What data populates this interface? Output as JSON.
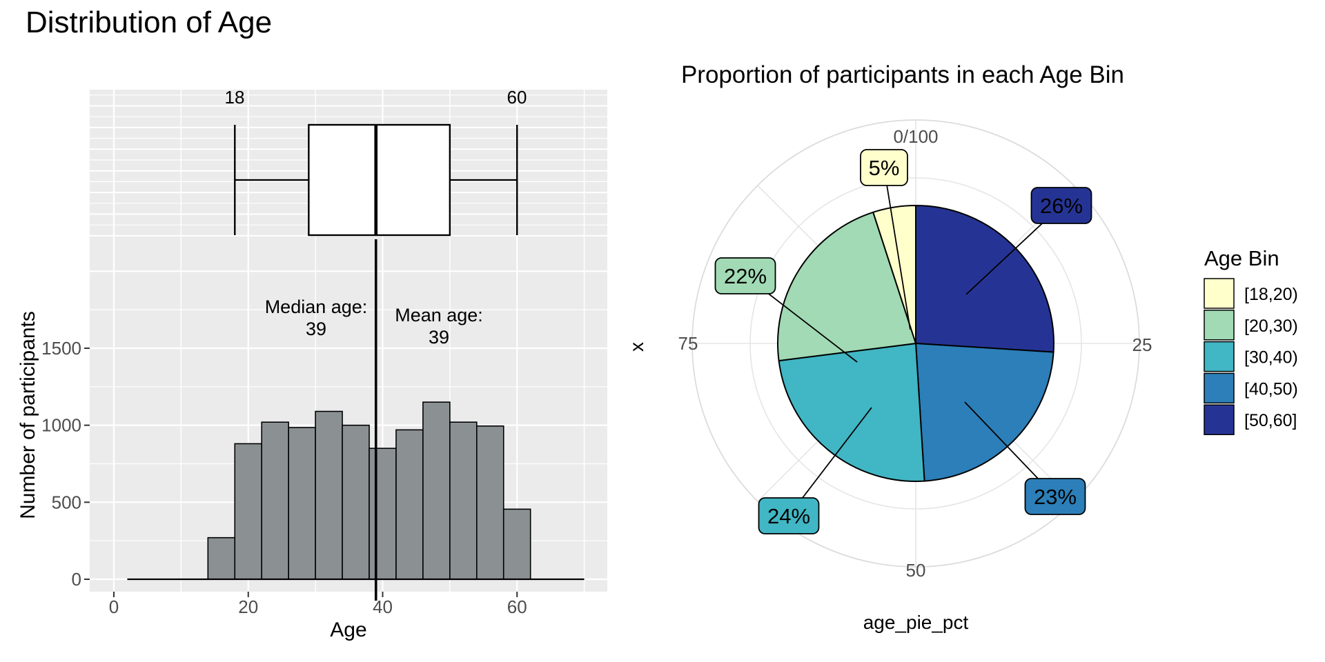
{
  "title": "Distribution of Age",
  "theme": {
    "panel_bg": "#EBEBEB",
    "grid": "#FFFFFF",
    "tick_text": "#4D4D4D",
    "polar_grid": "#E5E5E5",
    "outer_circle": "#DCDCDC",
    "boxplot_annotation_color": "#7D4E4E",
    "bar_fill": "#8B9193",
    "bar_stroke": "#000000"
  },
  "chart_data": [
    {
      "id": "age-boxplot",
      "type": "boxplot",
      "orientation": "horizontal",
      "stats": {
        "whisker_min": 18,
        "q1": 29,
        "median": 39,
        "q3": 50,
        "whisker_max": 60
      },
      "annotations": [
        {
          "text": "18",
          "x": 18
        },
        {
          "text": "60",
          "x": 60
        }
      ],
      "xlim": [
        -4,
        74
      ],
      "x_gridlines_major": [
        0,
        20,
        40,
        60
      ],
      "x_gridlines_minor": [
        10,
        30,
        50,
        70
      ]
    },
    {
      "id": "age-histogram",
      "type": "histogram",
      "xlabel": "Age",
      "ylabel": "Number of participants",
      "bin_start": 14,
      "bin_width": 4,
      "values": [
        270,
        880,
        1020,
        985,
        1090,
        1000,
        850,
        970,
        1150,
        1020,
        995,
        455
      ],
      "x_ticks": [
        0,
        20,
        40,
        60
      ],
      "y_ticks": [
        0,
        500,
        1000,
        1500
      ],
      "y_grid_major": [
        0,
        500,
        1000,
        1500,
        2000
      ],
      "y_grid_minor": [
        250,
        750,
        1250,
        1750
      ],
      "xlim": [
        -4,
        74
      ],
      "ylim": [
        0,
        2207
      ],
      "baseline_span": [
        2,
        70
      ],
      "vline_x": 39,
      "annotations": [
        {
          "lines": [
            "Median age:",
            "39"
          ],
          "x": 31.5
        },
        {
          "lines": [
            "Mean age:",
            "39"
          ],
          "x": 46
        }
      ]
    },
    {
      "id": "age-pie",
      "type": "pie",
      "title": "Proportion of participants in each Age Bin",
      "xlabel": "age_pie_pct",
      "ylabel": "x",
      "theta_tick_labels": [
        "0/100",
        "25",
        "50",
        "75"
      ],
      "start": "top",
      "direction": "clockwise",
      "clockwise_order_from_top": [
        "[50,60]",
        "[40,50)",
        "[30,40)",
        "[20,30)",
        "[18,20)"
      ],
      "slices": [
        {
          "bin": "[18,20)",
          "pct": 5,
          "label": "5%",
          "color": "#FFFFCC"
        },
        {
          "bin": "[20,30)",
          "pct": 22,
          "label": "22%",
          "color": "#A1DAB4"
        },
        {
          "bin": "[30,40)",
          "pct": 24,
          "label": "24%",
          "color": "#41B6C4"
        },
        {
          "bin": "[40,50)",
          "pct": 23,
          "label": "23%",
          "color": "#2C7FB8"
        },
        {
          "bin": "[50,60]",
          "pct": 26,
          "label": "26%",
          "color": "#253494"
        }
      ],
      "legend": {
        "title": "Age Bin"
      }
    }
  ]
}
